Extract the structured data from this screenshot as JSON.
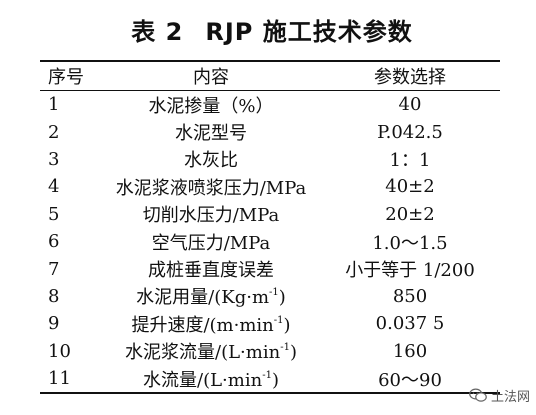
{
  "title": {
    "prefix": "表 2",
    "text": "RJP 施工技术参数"
  },
  "table": {
    "headers": [
      "序号",
      "内容",
      "参数选择"
    ],
    "rows": [
      {
        "no": "1",
        "content": "水泥掺量（%）",
        "param": "40"
      },
      {
        "no": "2",
        "content": "水泥型号",
        "param": "P.042.5"
      },
      {
        "no": "3",
        "content": "水灰比",
        "param": "1：1"
      },
      {
        "no": "4",
        "content": "水泥浆液喷浆压力/MPa",
        "param": "40±2"
      },
      {
        "no": "5",
        "content": "切削水压力/MPa",
        "param": "20±2"
      },
      {
        "no": "6",
        "content": "空气压力/MPa",
        "param": "1.0～1.5"
      },
      {
        "no": "7",
        "content": "成桩垂直度误差",
        "param": "小于等于 1/200"
      },
      {
        "no": "8",
        "content_main": "水泥用量/(Kg·m",
        "content_sup": "-1",
        "content_end": ")",
        "param": "850"
      },
      {
        "no": "9",
        "content_main": "提升速度/(m·min",
        "content_sup": "-1",
        "content_end": ")",
        "param": "0.037 5"
      },
      {
        "no": "10",
        "content_main": "水泥浆流量/(L·min",
        "content_sup": "-1",
        "content_end": ")",
        "param": "160"
      },
      {
        "no": "11",
        "content_main": "水流量/(L·min",
        "content_sup": "-1",
        "content_end": ")",
        "param": "60～90"
      }
    ]
  },
  "watermark": {
    "text": "土法网",
    "icon": "wechat-icon"
  }
}
